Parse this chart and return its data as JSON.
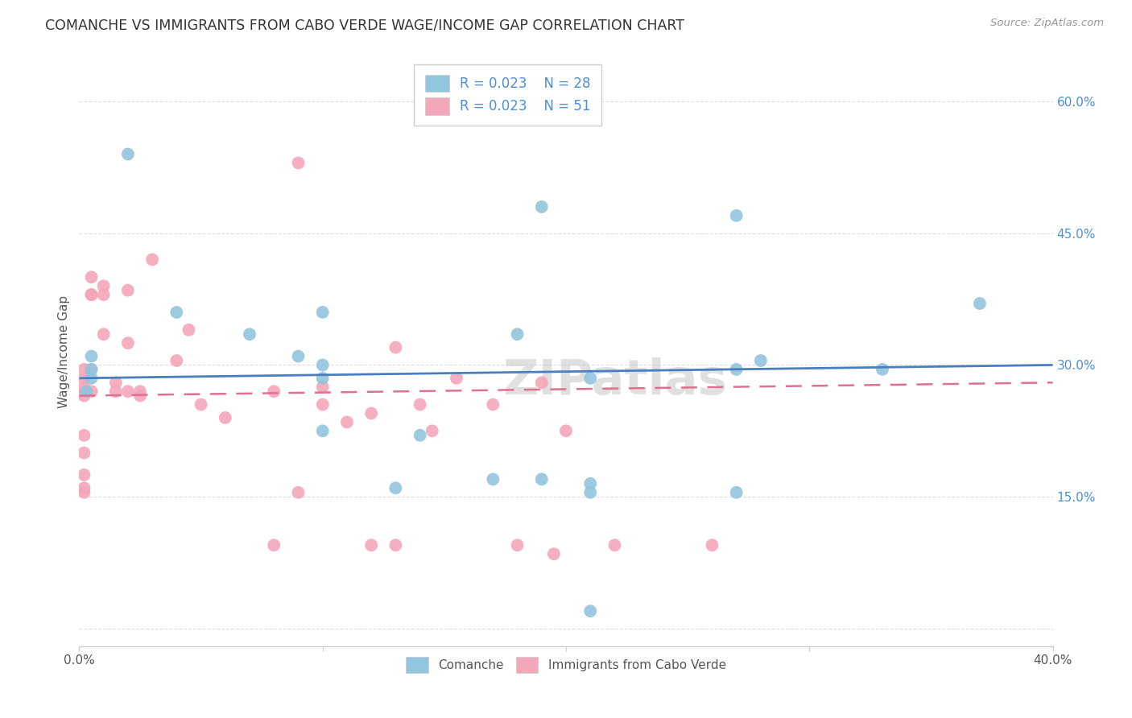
{
  "title": "COMANCHE VS IMMIGRANTS FROM CABO VERDE WAGE/INCOME GAP CORRELATION CHART",
  "source": "Source: ZipAtlas.com",
  "ylabel": "Wage/Income Gap",
  "xlim": [
    0.0,
    0.4
  ],
  "ylim": [
    -0.02,
    0.65
  ],
  "yticks": [
    0.0,
    0.15,
    0.3,
    0.45,
    0.6
  ],
  "ytick_labels": [
    "",
    "15.0%",
    "30.0%",
    "45.0%",
    "60.0%"
  ],
  "xticks": [
    0.0,
    0.1,
    0.2,
    0.3,
    0.4
  ],
  "xtick_labels": [
    "0.0%",
    "",
    "",
    "",
    "40.0%"
  ],
  "legend_label_blue": "Comanche",
  "legend_label_pink": "Immigrants from Cabo Verde",
  "blue_color": "#92C5DE",
  "pink_color": "#F4A7B9",
  "blue_line_color": "#4A7FBF",
  "pink_line_color": "#E07090",
  "watermark": "ZIPatlas",
  "blue_x": [
    0.003,
    0.02,
    0.005,
    0.005,
    0.005,
    0.04,
    0.07,
    0.09,
    0.1,
    0.1,
    0.1,
    0.1,
    0.13,
    0.14,
    0.17,
    0.18,
    0.19,
    0.19,
    0.21,
    0.21,
    0.21,
    0.27,
    0.27,
    0.27,
    0.28,
    0.33,
    0.37,
    0.21
  ],
  "blue_y": [
    0.27,
    0.54,
    0.285,
    0.295,
    0.31,
    0.36,
    0.335,
    0.31,
    0.285,
    0.3,
    0.36,
    0.225,
    0.16,
    0.22,
    0.17,
    0.335,
    0.48,
    0.17,
    0.285,
    0.165,
    0.155,
    0.295,
    0.47,
    0.155,
    0.305,
    0.295,
    0.37,
    0.02
  ],
  "pink_x": [
    0.002,
    0.002,
    0.002,
    0.002,
    0.002,
    0.002,
    0.002,
    0.002,
    0.002,
    0.002,
    0.005,
    0.005,
    0.005,
    0.005,
    0.005,
    0.01,
    0.01,
    0.01,
    0.015,
    0.015,
    0.02,
    0.02,
    0.02,
    0.025,
    0.025,
    0.03,
    0.04,
    0.045,
    0.05,
    0.06,
    0.08,
    0.09,
    0.09,
    0.1,
    0.1,
    0.11,
    0.12,
    0.13,
    0.14,
    0.145,
    0.155,
    0.17,
    0.18,
    0.19,
    0.195,
    0.2,
    0.22,
    0.26,
    0.08,
    0.12,
    0.13
  ],
  "pink_y": [
    0.275,
    0.285,
    0.295,
    0.27,
    0.265,
    0.22,
    0.2,
    0.175,
    0.155,
    0.16,
    0.38,
    0.4,
    0.38,
    0.295,
    0.27,
    0.39,
    0.38,
    0.335,
    0.28,
    0.27,
    0.385,
    0.325,
    0.27,
    0.27,
    0.265,
    0.42,
    0.305,
    0.34,
    0.255,
    0.24,
    0.27,
    0.155,
    0.53,
    0.275,
    0.255,
    0.235,
    0.245,
    0.32,
    0.255,
    0.225,
    0.285,
    0.255,
    0.095,
    0.28,
    0.085,
    0.225,
    0.095,
    0.095,
    0.095,
    0.095,
    0.095
  ]
}
